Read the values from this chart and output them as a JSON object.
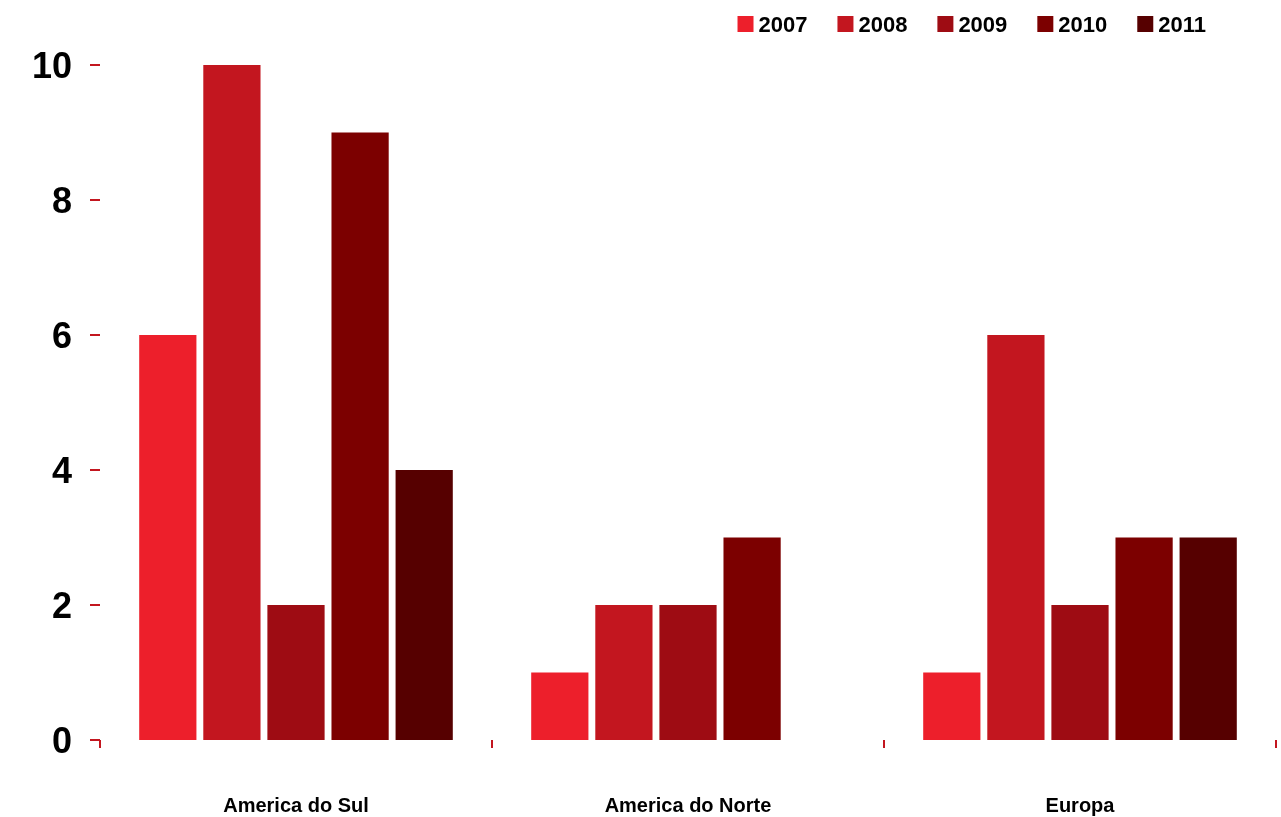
{
  "chart_data": {
    "type": "bar",
    "categories": [
      "America do Sul",
      "America do Norte",
      "Europa"
    ],
    "series": [
      {
        "name": "2007",
        "color": "#ed1f2b",
        "values": [
          6,
          1,
          1
        ]
      },
      {
        "name": "2008",
        "color": "#c3161f",
        "values": [
          10,
          2,
          6
        ]
      },
      {
        "name": "2009",
        "color": "#9e0c13",
        "values": [
          2,
          2,
          2
        ]
      },
      {
        "name": "2010",
        "color": "#7c0000",
        "values": [
          9,
          3,
          3
        ]
      },
      {
        "name": "2011",
        "color": "#560000",
        "values": [
          4,
          null,
          3
        ]
      }
    ],
    "ylim": [
      0,
      10
    ],
    "yticks": [
      0,
      2,
      4,
      6,
      8,
      10
    ],
    "grid": false,
    "legend": "top right"
  }
}
